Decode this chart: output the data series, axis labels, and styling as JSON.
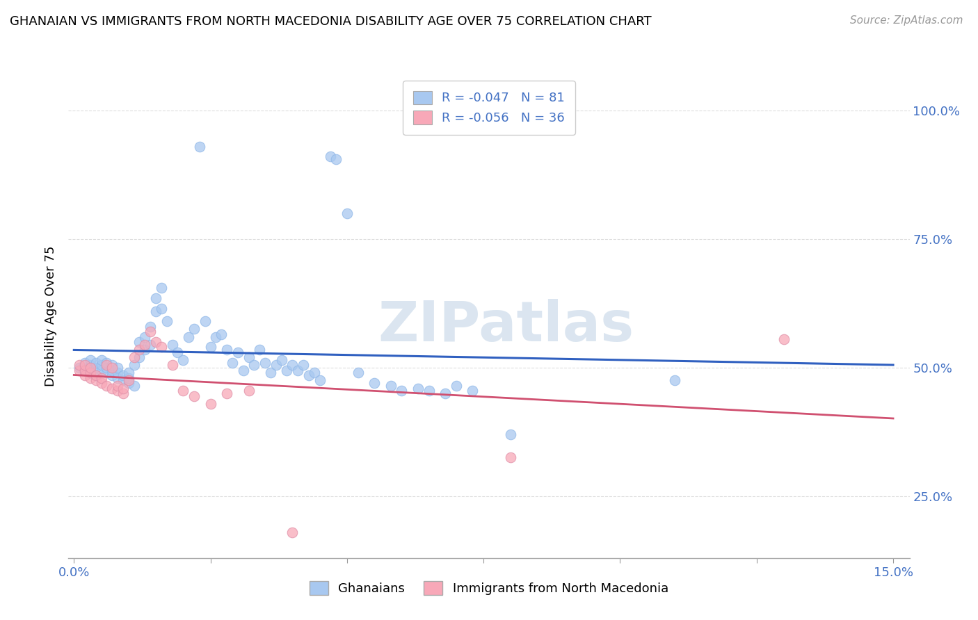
{
  "title": "GHANAIAN VS IMMIGRANTS FROM NORTH MACEDONIA DISABILITY AGE OVER 75 CORRELATION CHART",
  "source": "Source: ZipAtlas.com",
  "ylabel": "Disability Age Over 75",
  "xlim_min": -0.001,
  "xlim_max": 0.153,
  "ylim_min": 0.13,
  "ylim_max": 1.07,
  "ytick_vals": [
    0.25,
    0.5,
    0.75,
    1.0
  ],
  "ytick_labels": [
    "25.0%",
    "50.0%",
    "75.0%",
    "100.0%"
  ],
  "xtick_vals": [
    0.0,
    0.025,
    0.05,
    0.075,
    0.1,
    0.125,
    0.15
  ],
  "xtick_labels": [
    "0.0%",
    "",
    "",
    "",
    "",
    "",
    "15.0%"
  ],
  "legend1_label": "R = -0.047   N = 81",
  "legend2_label": "R = -0.056   N = 36",
  "ghanaian_color": "#a8c8f0",
  "macedonian_color": "#f8a8b8",
  "trend_blue": "#3060c0",
  "trend_pink": "#d05070",
  "watermark": "ZIPatlas",
  "watermark_color": "#c8d8e8",
  "ghanaians_label": "Ghanaians",
  "macedonians_label": "Immigrants from North Macedonia",
  "tick_label_color": "#4472c4",
  "grid_color": "#dddddd",
  "title_fontsize": 13,
  "source_fontsize": 11,
  "axis_label_fontsize": 13,
  "tick_fontsize": 13,
  "legend_fontsize": 13,
  "dot_size": 110,
  "dot_alpha": 0.75,
  "ghanaian_x": [
    0.001,
    0.002,
    0.002,
    0.003,
    0.003,
    0.003,
    0.004,
    0.004,
    0.004,
    0.005,
    0.005,
    0.005,
    0.006,
    0.006,
    0.006,
    0.007,
    0.007,
    0.007,
    0.008,
    0.008,
    0.008,
    0.009,
    0.009,
    0.01,
    0.01,
    0.01,
    0.011,
    0.011,
    0.012,
    0.012,
    0.013,
    0.013,
    0.014,
    0.014,
    0.015,
    0.015,
    0.016,
    0.016,
    0.017,
    0.018,
    0.019,
    0.02,
    0.021,
    0.022,
    0.023,
    0.024,
    0.025,
    0.026,
    0.027,
    0.028,
    0.029,
    0.03,
    0.031,
    0.032,
    0.033,
    0.034,
    0.035,
    0.036,
    0.037,
    0.038,
    0.039,
    0.04,
    0.041,
    0.042,
    0.043,
    0.044,
    0.045,
    0.047,
    0.048,
    0.05,
    0.052,
    0.055,
    0.058,
    0.06,
    0.063,
    0.065,
    0.068,
    0.07,
    0.073,
    0.08,
    0.11
  ],
  "ghanaian_y": [
    0.5,
    0.51,
    0.495,
    0.49,
    0.505,
    0.515,
    0.485,
    0.5,
    0.51,
    0.495,
    0.505,
    0.515,
    0.49,
    0.5,
    0.51,
    0.485,
    0.495,
    0.505,
    0.48,
    0.49,
    0.5,
    0.475,
    0.485,
    0.47,
    0.48,
    0.49,
    0.465,
    0.505,
    0.55,
    0.52,
    0.56,
    0.535,
    0.58,
    0.545,
    0.635,
    0.61,
    0.655,
    0.615,
    0.59,
    0.545,
    0.53,
    0.515,
    0.56,
    0.575,
    0.93,
    0.59,
    0.54,
    0.56,
    0.565,
    0.535,
    0.51,
    0.53,
    0.495,
    0.52,
    0.505,
    0.535,
    0.51,
    0.49,
    0.505,
    0.515,
    0.495,
    0.505,
    0.495,
    0.505,
    0.485,
    0.49,
    0.475,
    0.91,
    0.905,
    0.8,
    0.49,
    0.47,
    0.465,
    0.455,
    0.46,
    0.455,
    0.45,
    0.465,
    0.455,
    0.37,
    0.475
  ],
  "macedonian_x": [
    0.001,
    0.001,
    0.002,
    0.002,
    0.002,
    0.003,
    0.003,
    0.003,
    0.004,
    0.004,
    0.005,
    0.005,
    0.006,
    0.006,
    0.007,
    0.007,
    0.008,
    0.008,
    0.009,
    0.009,
    0.01,
    0.011,
    0.012,
    0.013,
    0.014,
    0.015,
    0.016,
    0.018,
    0.02,
    0.022,
    0.025,
    0.028,
    0.032,
    0.04,
    0.13,
    0.08
  ],
  "macedonian_y": [
    0.495,
    0.505,
    0.485,
    0.495,
    0.505,
    0.48,
    0.49,
    0.5,
    0.475,
    0.485,
    0.47,
    0.48,
    0.465,
    0.505,
    0.46,
    0.5,
    0.455,
    0.465,
    0.45,
    0.46,
    0.475,
    0.52,
    0.535,
    0.545,
    0.57,
    0.55,
    0.54,
    0.505,
    0.455,
    0.445,
    0.43,
    0.45,
    0.455,
    0.18,
    0.555,
    0.325
  ]
}
